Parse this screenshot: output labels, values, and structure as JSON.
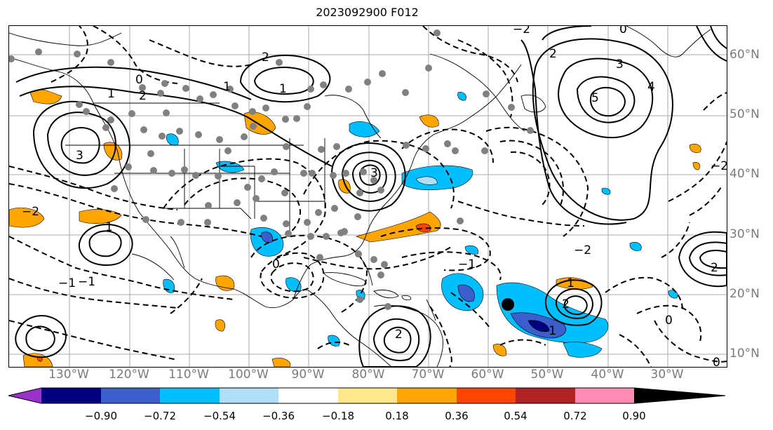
{
  "title": "2023092900 F012",
  "lat_labels": [
    "60°N",
    "50°N",
    "40°N",
    "30°N",
    "20°N",
    "10°N"
  ],
  "lon_labels": [
    "130°W",
    "120°W",
    "110°W",
    "100°W",
    "90°W",
    "80°W",
    "70°W",
    "60°W",
    "50°W",
    "40°W",
    "30°W"
  ],
  "colorbar": {
    "colors": [
      "#9932cc",
      "#000080",
      "#3a5fcd",
      "#00bfff",
      "#b0e0f8",
      "#ffffff",
      "#ffe88a",
      "#ffa500",
      "#ff4500",
      "#b22222",
      "#ff8ab4"
    ],
    "ticks": [
      "−0.90",
      "−0.72",
      "−0.54",
      "−0.36",
      "−0.18",
      "0.18",
      "0.36",
      "0.54",
      "0.72",
      "0.90"
    ]
  },
  "contour_labels": {
    "l1": "2",
    "l2": "1",
    "l3": "0",
    "l4": "3",
    "l5": "3",
    "l6": "1",
    "l7": "2",
    "l8": "1",
    "l9": "3",
    "l10": "4",
    "l11": "5",
    "l12": "2",
    "l13": "−2",
    "l14": "−1",
    "l15": "−1",
    "l16": "1",
    "l17": "2",
    "l18": "−2",
    "l19": "0",
    "l20": "−1",
    "l21": "−2",
    "l22": "2",
    "l23": "−1",
    "l24": "0",
    "l25": "0",
    "l26": "1",
    "l27": "2",
    "l28": "−2",
    "l29": "0"
  },
  "marker_color": "#000000",
  "dot_color": "#808080"
}
